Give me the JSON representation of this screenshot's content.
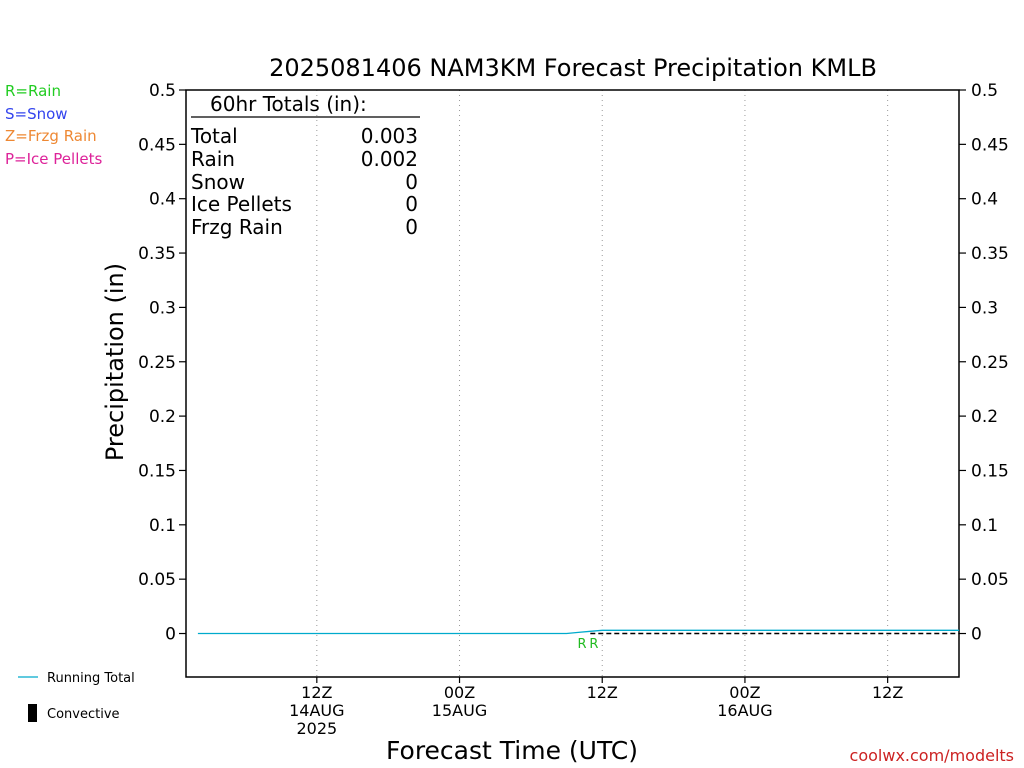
{
  "chart_data": {
    "type": "line",
    "title": "2025081406 NAM3KM Forecast Precipitation KMLB",
    "xlabel": "Forecast Time (UTC)",
    "ylabel": "Precipitation (in)",
    "ylim": [
      -0.04,
      0.5
    ],
    "xlim_hours": [
      -5,
      60
    ],
    "yticks": [
      "0",
      "0.05",
      "0.1",
      "0.15",
      "0.2",
      "0.25",
      "0.3",
      "0.35",
      "0.4",
      "0.45",
      "0.5"
    ],
    "xticks": [
      {
        "hour": 6,
        "l1": "12Z",
        "l2": "14AUG",
        "l3": "2025"
      },
      {
        "hour": 18,
        "l1": "00Z",
        "l2": "15AUG",
        "l3": ""
      },
      {
        "hour": 30,
        "l1": "12Z",
        "l2": "",
        "l3": ""
      },
      {
        "hour": 42,
        "l1": "00Z",
        "l2": "16AUG",
        "l3": ""
      },
      {
        "hour": 54,
        "l1": "12Z",
        "l2": "",
        "l3": ""
      }
    ],
    "grid": "vertical dotted",
    "series": [
      {
        "name": "Running Total",
        "color": "#00aacc",
        "x": [
          -4,
          27,
          28,
          29,
          30,
          60
        ],
        "values": [
          0,
          0,
          0.001,
          0.002,
          0.003,
          0.003
        ]
      },
      {
        "name": "Convective",
        "color": "#000000",
        "x": [
          29,
          60
        ],
        "values": [
          0,
          0
        ]
      }
    ],
    "markers": [
      {
        "hour": 28.3,
        "text": "R",
        "color": "#22bb22"
      },
      {
        "hour": 29.3,
        "text": "R",
        "color": "#22bb22"
      }
    ],
    "totals": {
      "header": "60hr Totals (in):",
      "rows": [
        {
          "label": "Total",
          "value": "0.003"
        },
        {
          "label": "Rain",
          "value": "0.002"
        },
        {
          "label": "Snow",
          "value": "0"
        },
        {
          "label": "Ice Pellets",
          "value": "0"
        },
        {
          "label": "Frzg Rain",
          "value": "0"
        }
      ]
    }
  },
  "type_legend": [
    {
      "text": "R=Rain",
      "color": "#22cc22"
    },
    {
      "text": "S=Snow",
      "color": "#3344ee"
    },
    {
      "text": "Z=Frzg Rain",
      "color": "#ee8833"
    },
    {
      "text": "P=Ice Pellets",
      "color": "#dd2299"
    }
  ],
  "series_legend": {
    "running_total": "Running Total",
    "convective": "Convective"
  },
  "credit": "coolwx.com/modelts",
  "colors": {
    "credit": "#cc2222",
    "running_total": "#00aacc"
  }
}
